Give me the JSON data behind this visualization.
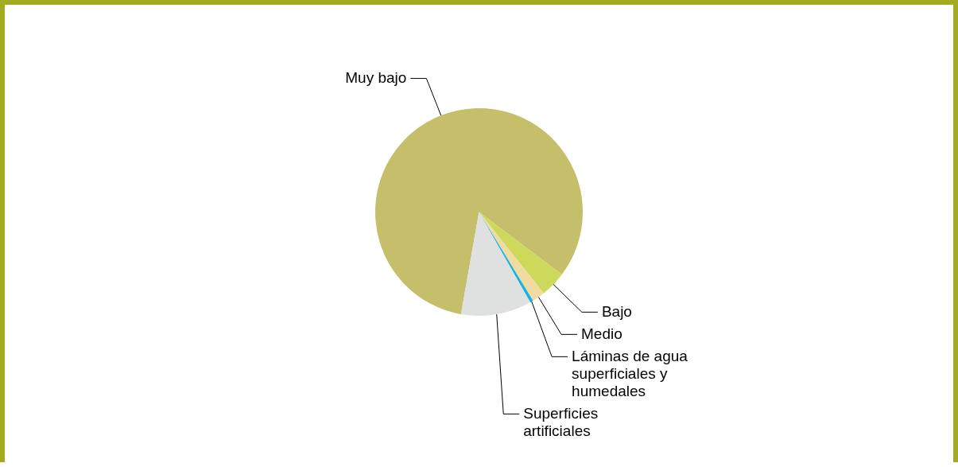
{
  "chart_data": {
    "type": "pie",
    "categories": [
      "Muy bajo",
      "Bajo",
      "Medio",
      "Láminas de agua superficiales y humedales",
      "Superficies artificiales"
    ],
    "values": [
      82.5,
      4,
      2,
      0.5,
      11
    ],
    "colors": [
      "#c5be6a",
      "#cdd95a",
      "#f0dca0",
      "#1ab0e0",
      "#dfe0e0"
    ],
    "legend": false
  }
}
